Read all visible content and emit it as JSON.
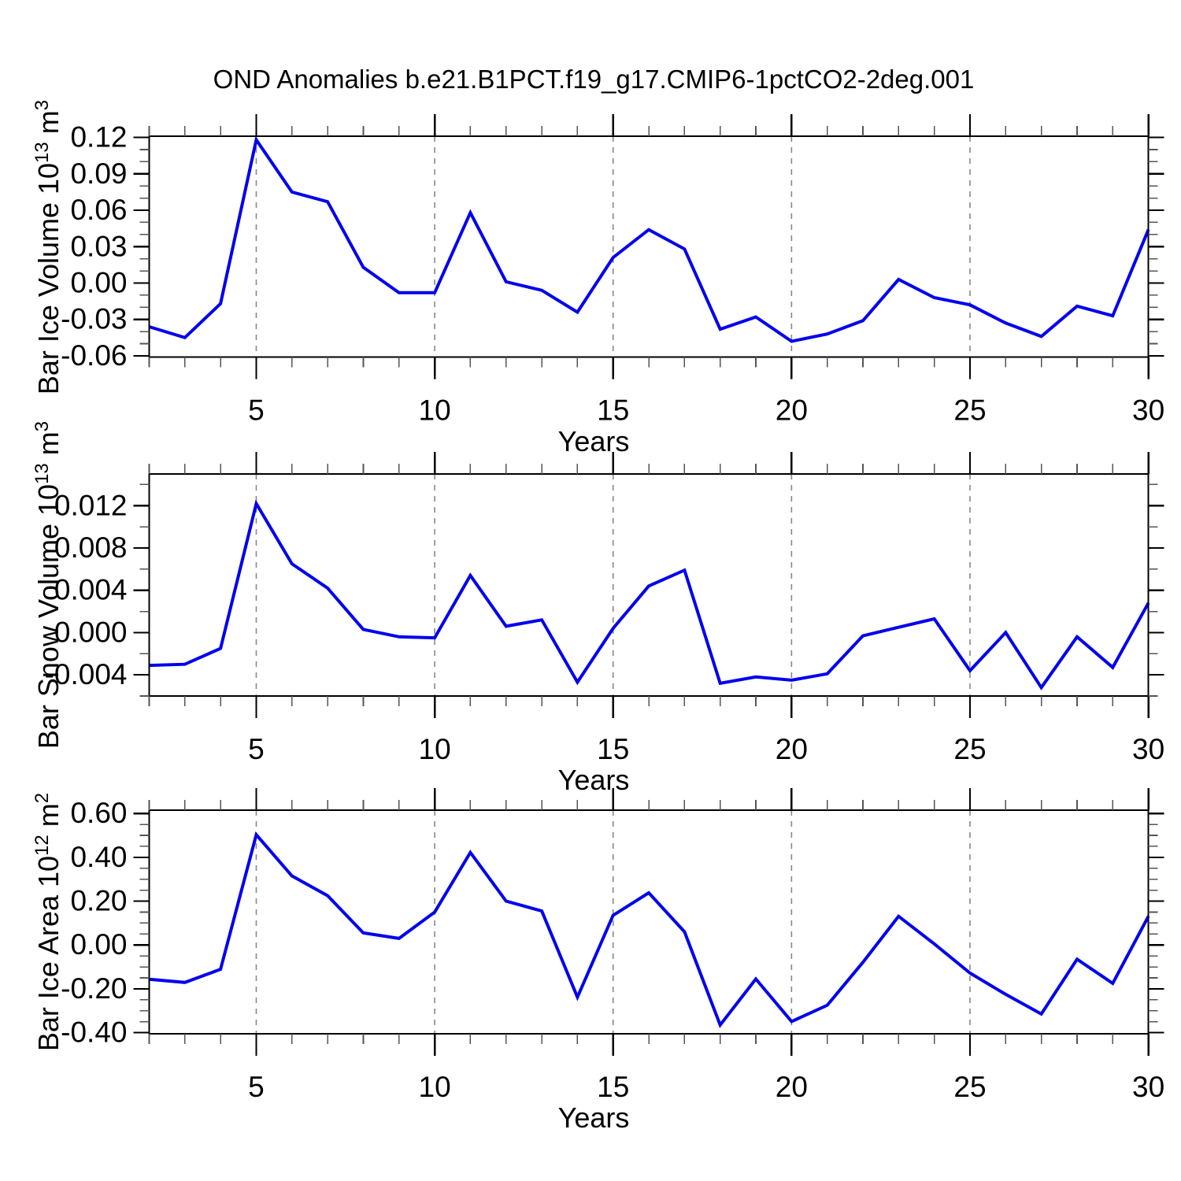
{
  "title": "OND Anomalies b.e21.B1PCT.f19_g17.CMIP6-1pctCO2-2deg.001",
  "xlabel": "Years",
  "colors": {
    "line": "#0000ee",
    "frame": "#000000",
    "tick_major": "#000000",
    "tick_minor": "#555555",
    "grid": "#888888",
    "text": "#000000"
  },
  "x_axis": {
    "start": 2,
    "end": 30,
    "major_ticks": [
      5,
      10,
      15,
      20,
      25,
      30
    ],
    "major_tick_labels": [
      "5",
      "10",
      "15",
      "20",
      "25",
      "30"
    ],
    "minor_step": 1,
    "grid_lines": [
      5,
      10,
      15,
      20,
      25
    ]
  },
  "chart_data": [
    {
      "type": "line",
      "id": "ice-volume",
      "ylabel_text": "Bar Ice Volume 10^13 m^3",
      "ylabel_parts": [
        {
          "t": "Bar Ice Volume 10"
        },
        {
          "s": "13"
        },
        {
          "t": " m"
        },
        {
          "s": "3"
        }
      ],
      "xlabel": "Years",
      "ylim": [
        -0.061,
        0.121
      ],
      "yticks": [
        0.12,
        0.09,
        0.06,
        0.03,
        0.0,
        -0.03,
        -0.06
      ],
      "ytick_labels": [
        "0.12",
        "0.09",
        "0.06",
        "0.03",
        "0.00",
        "-0.03",
        "-0.06"
      ],
      "y_minor_step": 0.01,
      "x": [
        2,
        3,
        4,
        5,
        6,
        7,
        8,
        9,
        10,
        11,
        12,
        13,
        14,
        15,
        16,
        17,
        18,
        19,
        20,
        21,
        22,
        23,
        24,
        25,
        26,
        27,
        28,
        29,
        30
      ],
      "values": [
        -0.036,
        -0.045,
        -0.017,
        0.118,
        0.075,
        0.067,
        0.013,
        -0.008,
        -0.008,
        0.058,
        0.001,
        -0.006,
        -0.024,
        0.021,
        0.044,
        0.028,
        -0.038,
        -0.028,
        -0.048,
        -0.042,
        -0.031,
        0.003,
        -0.012,
        -0.018,
        -0.033,
        -0.044,
        -0.019,
        -0.027,
        0.044
      ]
    },
    {
      "type": "line",
      "id": "snow-volume",
      "ylabel_text": "Bar Snow Volume 10^13 m^3",
      "ylabel_parts": [
        {
          "t": "Bar Snow Volume 10"
        },
        {
          "s": "13"
        },
        {
          "t": " m"
        },
        {
          "s": "3"
        }
      ],
      "xlabel": "Years",
      "ylim": [
        -0.006,
        0.015
      ],
      "yticks": [
        0.012,
        0.008,
        0.004,
        0.0,
        -0.004
      ],
      "ytick_labels": [
        "0.012",
        "0.008",
        "0.004",
        "0.000",
        "-0.004"
      ],
      "y_minor_step": 0.002,
      "x": [
        2,
        3,
        4,
        5,
        6,
        7,
        8,
        9,
        10,
        11,
        12,
        13,
        14,
        15,
        16,
        17,
        18,
        19,
        20,
        21,
        22,
        23,
        24,
        25,
        26,
        27,
        28,
        29,
        30
      ],
      "values": [
        -0.0031,
        -0.003,
        -0.0015,
        0.0122,
        0.0065,
        0.0042,
        0.0003,
        -0.0004,
        -0.0005,
        0.0054,
        0.0006,
        0.0012,
        -0.0047,
        0.0004,
        0.0044,
        0.0059,
        -0.0048,
        -0.0042,
        -0.0045,
        -0.0039,
        -0.0003,
        0.0005,
        0.0013,
        -0.0036,
        0.0,
        -0.0052,
        -0.0004,
        -0.0033,
        0.0028
      ]
    },
    {
      "type": "line",
      "id": "ice-area",
      "ylabel_text": "Bar Ice Area 10^12 m^2",
      "ylabel_parts": [
        {
          "t": "Bar Ice Area 10"
        },
        {
          "s": "12"
        },
        {
          "t": " m"
        },
        {
          "s": "2"
        }
      ],
      "xlabel": "Years",
      "ylim": [
        -0.405,
        0.615
      ],
      "yticks": [
        0.6,
        0.4,
        0.2,
        0.0,
        -0.2,
        -0.4
      ],
      "ytick_labels": [
        "0.60",
        "0.40",
        "0.20",
        "0.00",
        "-0.20",
        "-0.40"
      ],
      "y_minor_step": 0.05,
      "x": [
        2,
        3,
        4,
        5,
        6,
        7,
        8,
        9,
        10,
        11,
        12,
        13,
        14,
        15,
        16,
        17,
        18,
        19,
        20,
        21,
        22,
        23,
        24,
        25,
        26,
        27,
        28,
        29,
        30
      ],
      "values": [
        -0.156,
        -0.171,
        -0.111,
        0.503,
        0.315,
        0.225,
        0.055,
        0.03,
        0.15,
        0.422,
        0.2,
        0.155,
        -0.238,
        0.135,
        0.238,
        0.06,
        -0.365,
        -0.155,
        -0.349,
        -0.275,
        -0.079,
        0.131,
        0.005,
        -0.128,
        -0.225,
        -0.315,
        -0.065,
        -0.175,
        0.131
      ]
    }
  ]
}
